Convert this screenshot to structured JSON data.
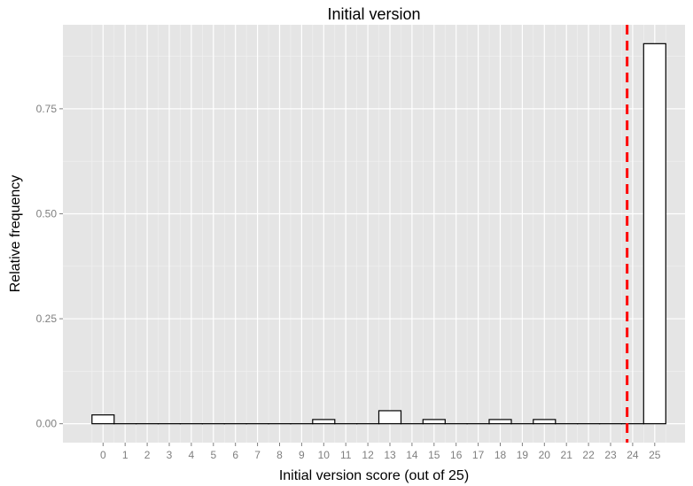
{
  "chart_data": {
    "type": "bar",
    "title": "Initial version",
    "xlabel": "Initial version score (out of 25)",
    "ylabel": "Relative frequency",
    "categories": [
      "0",
      "1",
      "2",
      "3",
      "4",
      "5",
      "6",
      "7",
      "8",
      "9",
      "10",
      "11",
      "12",
      "13",
      "14",
      "15",
      "16",
      "17",
      "18",
      "19",
      "20",
      "21",
      "22",
      "23",
      "24",
      "25"
    ],
    "values": [
      0.021,
      0,
      0,
      0,
      0,
      0,
      0,
      0,
      0,
      0,
      0.01,
      0,
      0,
      0.031,
      0,
      0.01,
      0,
      0,
      0.01,
      0,
      0.01,
      0,
      0,
      0,
      0,
      0.905
    ],
    "yticks": [
      "0.00",
      "0.25",
      "0.50",
      "0.75"
    ],
    "ylim": [
      -0.045,
      0.95
    ],
    "reference_line": {
      "x": 23.75,
      "style": "dashed",
      "color": "#ff0000"
    },
    "grid": true,
    "colors": {
      "panel_bg": "#e5e5e5",
      "grid_major": "#ffffff",
      "grid_minor": "#f2f2f2",
      "bar_fill": "#ffffff",
      "bar_stroke": "#000000"
    }
  }
}
